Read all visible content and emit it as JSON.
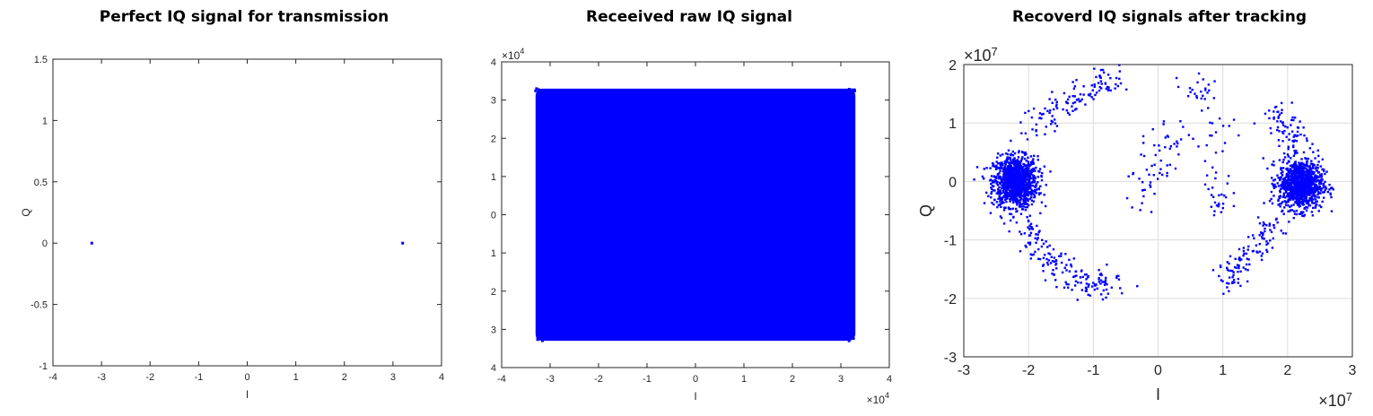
{
  "chart_data": [
    {
      "type": "scatter",
      "title": "Perfect IQ signal for transmission",
      "xlabel": "I",
      "ylabel": "Q",
      "xlim": [
        -4,
        4
      ],
      "ylim": [
        -1,
        1.5
      ],
      "xticks": [
        "-4",
        "-3",
        "-2",
        "-1",
        "0",
        "1",
        "2",
        "3",
        "4"
      ],
      "xtick_values": [
        -4,
        -3,
        -2,
        -1,
        0,
        1,
        2,
        3,
        4
      ],
      "yticks": [
        "-1",
        "-0.5",
        "0",
        "0.5",
        "1",
        "1.5"
      ],
      "ytick_values": [
        -1,
        -0.5,
        0,
        0.5,
        1,
        1.5
      ],
      "grid": false,
      "color": "#0000ff",
      "points": [
        [
          -3.2,
          0
        ],
        [
          3.2,
          0
        ]
      ]
    },
    {
      "type": "scatter",
      "title": "Receeived raw IQ signal",
      "xlabel": "I",
      "ylabel": "",
      "x_exponent": "×10",
      "x_exponent_power": "4",
      "y_exponent": "×10",
      "y_exponent_power": "4",
      "xlim": [
        -4,
        4
      ],
      "ylim": [
        -4,
        4
      ],
      "xticks": [
        "-4",
        "-3",
        "-2",
        "-1",
        "0",
        "1",
        "2",
        "3",
        "4"
      ],
      "xtick_values": [
        -4,
        -3,
        -2,
        -1,
        0,
        1,
        2,
        3,
        4
      ],
      "yticks": [
        "4",
        "3",
        "2",
        "1",
        "0",
        "1",
        "2",
        "3",
        "4"
      ],
      "ytick_values": [
        -4,
        -3,
        -2,
        -1,
        0,
        1,
        2,
        3,
        4
      ],
      "grid": false,
      "color": "#0000ff",
      "filled_region": {
        "I": [
          -3.3,
          3.3
        ],
        "Q": [
          -3.3,
          3.3
        ]
      }
    },
    {
      "type": "scatter",
      "title": "Recoverd IQ signals after tracking",
      "xlabel": "I",
      "ylabel": "Q",
      "x_exponent": "×10",
      "x_exponent_power": "7",
      "y_exponent": "×10",
      "y_exponent_power": "7",
      "xlim": [
        -3,
        3
      ],
      "ylim": [
        -3,
        2
      ],
      "xticks": [
        "-3",
        "-2",
        "-1",
        "0",
        "1",
        "2",
        "3"
      ],
      "xtick_values": [
        -3,
        -2,
        -1,
        0,
        1,
        2,
        3
      ],
      "yticks": [
        "-3",
        "-2",
        "-1",
        "0",
        "1",
        "2"
      ],
      "ytick_values": [
        -3,
        -2,
        -1,
        0,
        1,
        2
      ],
      "grid": true,
      "color": "#0000ff",
      "clusters": [
        {
          "center": [
            -2.2,
            0.0
          ],
          "spread": 0.17,
          "count": 1100
        },
        {
          "center": [
            2.2,
            -0.05
          ],
          "spread": 0.17,
          "count": 1000
        }
      ],
      "scatter_bands": [
        {
          "path": [
            [
              -2.0,
              0.8
            ],
            [
              -1.5,
              1.3
            ],
            [
              -1.0,
              1.6
            ],
            [
              -0.7,
              1.8
            ]
          ],
          "spread": 0.13,
          "count": 120
        },
        {
          "path": [
            [
              -2.1,
              -0.6
            ],
            [
              -1.9,
              -1.1
            ],
            [
              -1.5,
              -1.5
            ],
            [
              -1.0,
              -1.8
            ],
            [
              -0.7,
              -1.7
            ]
          ],
          "spread": 0.13,
          "count": 170
        },
        {
          "path": [
            [
              1.8,
              -0.7
            ],
            [
              1.5,
              -1.1
            ],
            [
              1.2,
              -1.5
            ],
            [
              1.1,
              -1.8
            ]
          ],
          "spread": 0.1,
          "count": 110
        },
        {
          "path": [
            [
              1.8,
              1.2
            ],
            [
              2.0,
              0.9
            ],
            [
              2.2,
              0.6
            ]
          ],
          "spread": 0.12,
          "count": 70
        },
        {
          "path": [
            [
              -0.3,
              -0.3
            ],
            [
              0.0,
              0.3
            ],
            [
              0.2,
              0.9
            ]
          ],
          "spread": 0.18,
          "count": 60
        },
        {
          "path": [
            [
              0.5,
              1.8
            ],
            [
              0.8,
              1.4
            ],
            [
              0.9,
              0.6
            ],
            [
              0.9,
              -0.3
            ],
            [
              0.9,
              -0.6
            ]
          ],
          "spread": 0.15,
          "count": 70
        }
      ]
    }
  ]
}
